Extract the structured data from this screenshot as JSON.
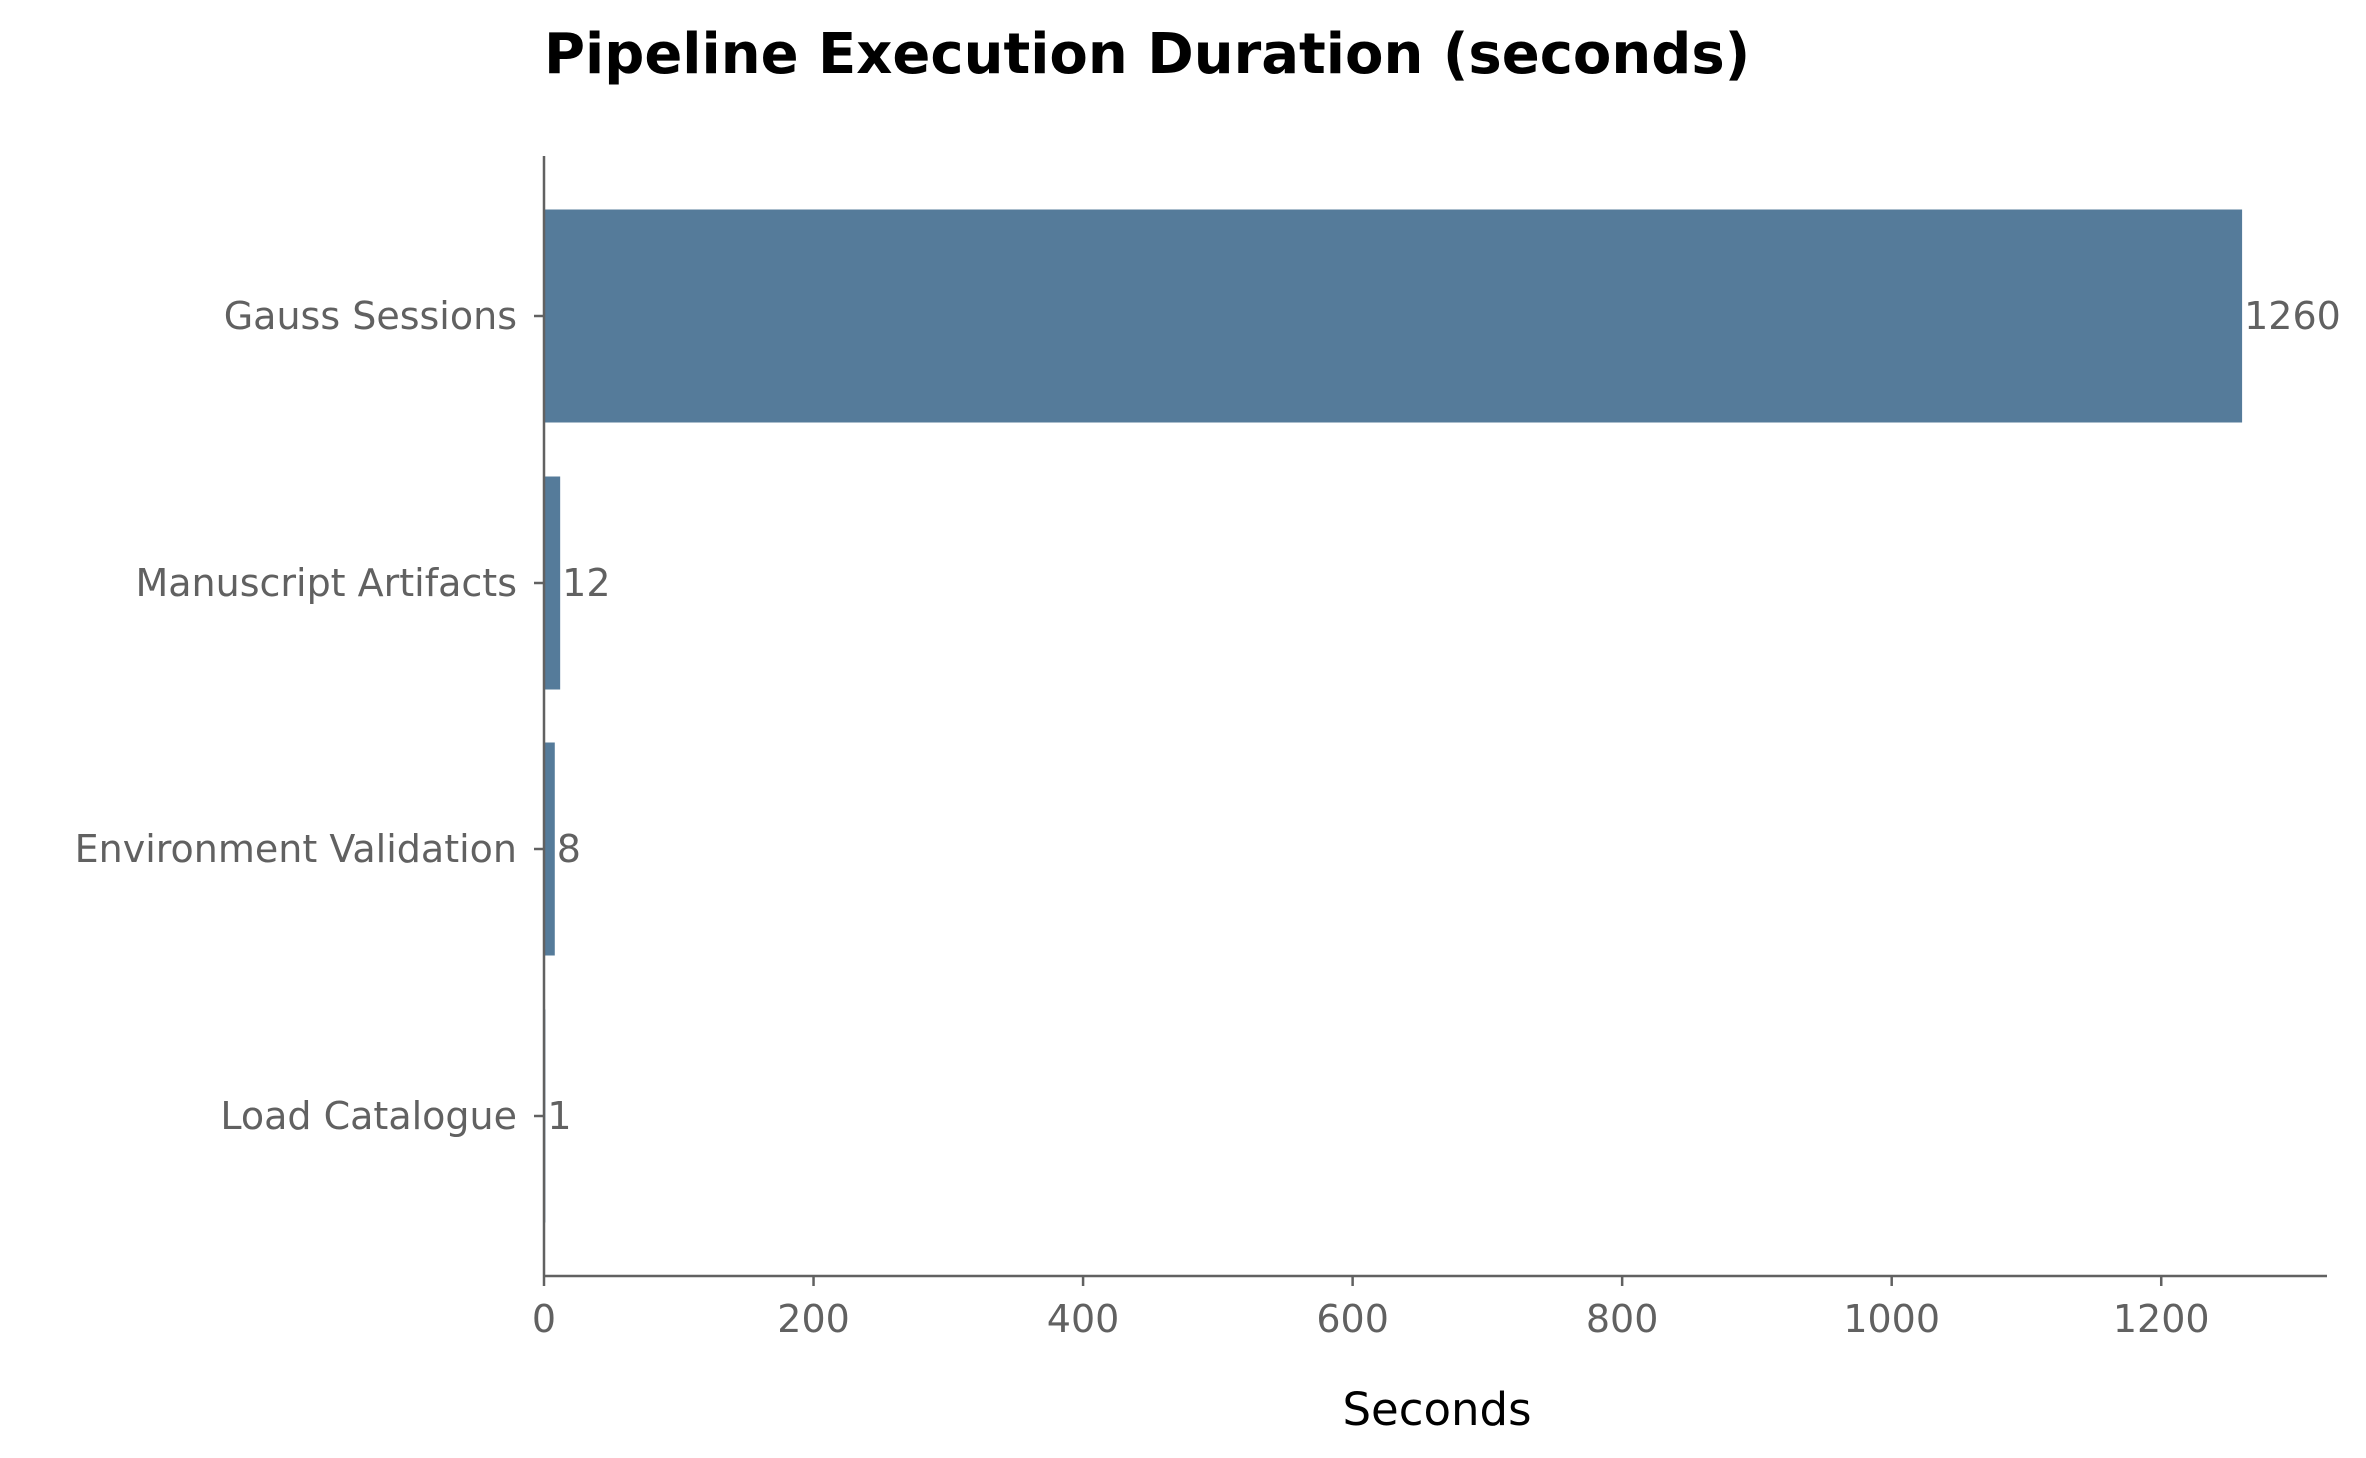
{
  "chart_data": {
    "type": "bar",
    "orientation": "horizontal",
    "title": "Pipeline Execution Duration (seconds)",
    "xlabel": "Seconds",
    "ylabel": "",
    "categories": [
      "Gauss Sessions",
      "Manuscript Artifacts",
      "Environment Validation",
      "Load Catalogue"
    ],
    "values": [
      1260,
      12,
      8,
      1
    ],
    "data_labels": [
      "1260",
      "12",
      "8",
      "1"
    ],
    "xlim": [
      0,
      1323
    ],
    "xticks": [
      0,
      200,
      400,
      600,
      800,
      1000,
      1200
    ],
    "xtick_labels": [
      "0",
      "200",
      "400",
      "600",
      "800",
      "1000",
      "1200"
    ],
    "grid": false,
    "legend": "none",
    "colors": {
      "bar": "#557b9a",
      "axis": "#616161",
      "tick_text": "#616161",
      "title": "#000000"
    }
  }
}
